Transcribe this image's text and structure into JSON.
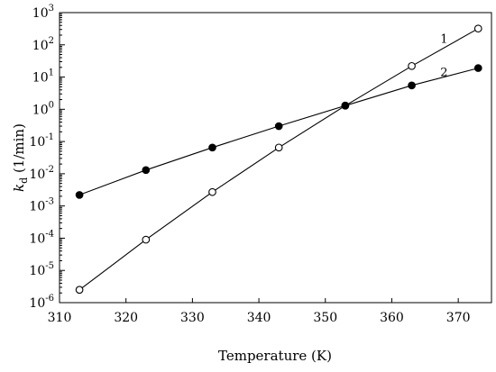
{
  "chart_data": {
    "type": "scatter",
    "title": "",
    "xlabel": "Temperature (K)",
    "ylabel": {
      "symbol": "k",
      "subscript": "d",
      "unit": " (1/min)"
    },
    "xlim": [
      310,
      375
    ],
    "ylim": [
      1e-06,
      1000
    ],
    "yscale": "log",
    "grid": false,
    "legend": "none",
    "x_ticks": [
      310,
      320,
      330,
      340,
      350,
      360,
      370
    ],
    "x_tick_labels": [
      "310",
      "320",
      "330",
      "340",
      "350",
      "360",
      "370"
    ],
    "y_ticks": [
      {
        "value": 1e-06,
        "base": "10",
        "exp": "-6"
      },
      {
        "value": 1e-05,
        "base": "10",
        "exp": "-5"
      },
      {
        "value": 0.0001,
        "base": "10",
        "exp": "-4"
      },
      {
        "value": 0.001,
        "base": "10",
        "exp": "-3"
      },
      {
        "value": 0.01,
        "base": "10",
        "exp": "-2"
      },
      {
        "value": 0.1,
        "base": "10",
        "exp": "-1"
      },
      {
        "value": 1,
        "base": "10",
        "exp": "0"
      },
      {
        "value": 10,
        "base": "10",
        "exp": "1"
      },
      {
        "value": 100,
        "base": "10",
        "exp": "2"
      },
      {
        "value": 1000,
        "base": "10",
        "exp": "3"
      }
    ],
    "series": [
      {
        "name": "1",
        "marker": "open-circle",
        "color": "#000000",
        "x": [
          313,
          323,
          333,
          343,
          353,
          363,
          373
        ],
        "y": [
          2.5e-06,
          9e-05,
          0.0027,
          0.065,
          1.3,
          22,
          320
        ]
      },
      {
        "name": "2",
        "marker": "filled-circle",
        "color": "#000000",
        "x": [
          313,
          323,
          333,
          343,
          353,
          363,
          373
        ],
        "y": [
          0.0022,
          0.013,
          0.065,
          0.3,
          1.3,
          5.5,
          19
        ]
      }
    ]
  }
}
